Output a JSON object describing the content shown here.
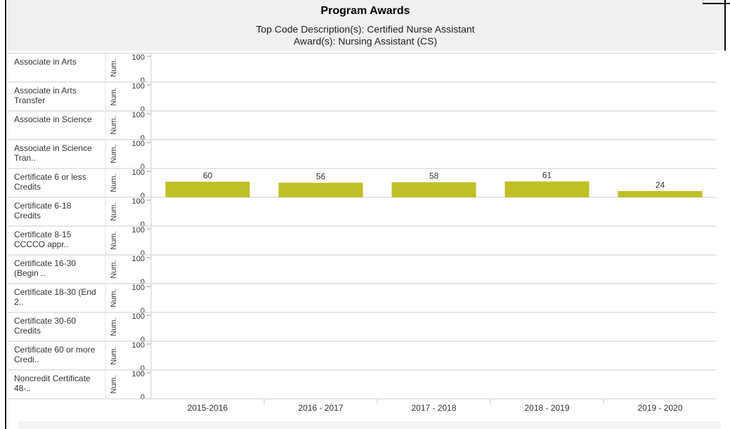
{
  "chart_data": {
    "type": "bar",
    "title": "Program Awards",
    "subtitle": "Top Code Description(s): Certified Nurse Assistant",
    "subtitle2": "Award(s): Nursing Assistant (CS)",
    "y_label": "Num.",
    "categories": [
      "2015-2016",
      "2016 - 2017",
      "2017 - 2018",
      "2018 - 2019",
      "2019 - 2020"
    ],
    "color": "#bfbf26",
    "ylim": [
      0,
      100
    ],
    "yticks": [
      0,
      100
    ],
    "rows": [
      {
        "name": "Associate in Arts"
      },
      {
        "name": "Associate in Arts Transfer"
      },
      {
        "name": "Associate in Science"
      },
      {
        "name": "Associate in Science Tran.."
      },
      {
        "name": "Certificate 6 or less Credits",
        "values": [
          60,
          56,
          58,
          61,
          24
        ]
      },
      {
        "name": "Certificate 6-18 Credits"
      },
      {
        "name": "Certificate 8-15 CCCCO appr.."
      },
      {
        "name": "Certificate 16-30 (Begin .."
      },
      {
        "name": "Certificate 18-30 (End 2.."
      },
      {
        "name": "Certificate 30-60 Credits"
      },
      {
        "name": "Certificate 60 or more Credi.."
      },
      {
        "name": "Noncredit Certificate 48-.."
      }
    ]
  }
}
